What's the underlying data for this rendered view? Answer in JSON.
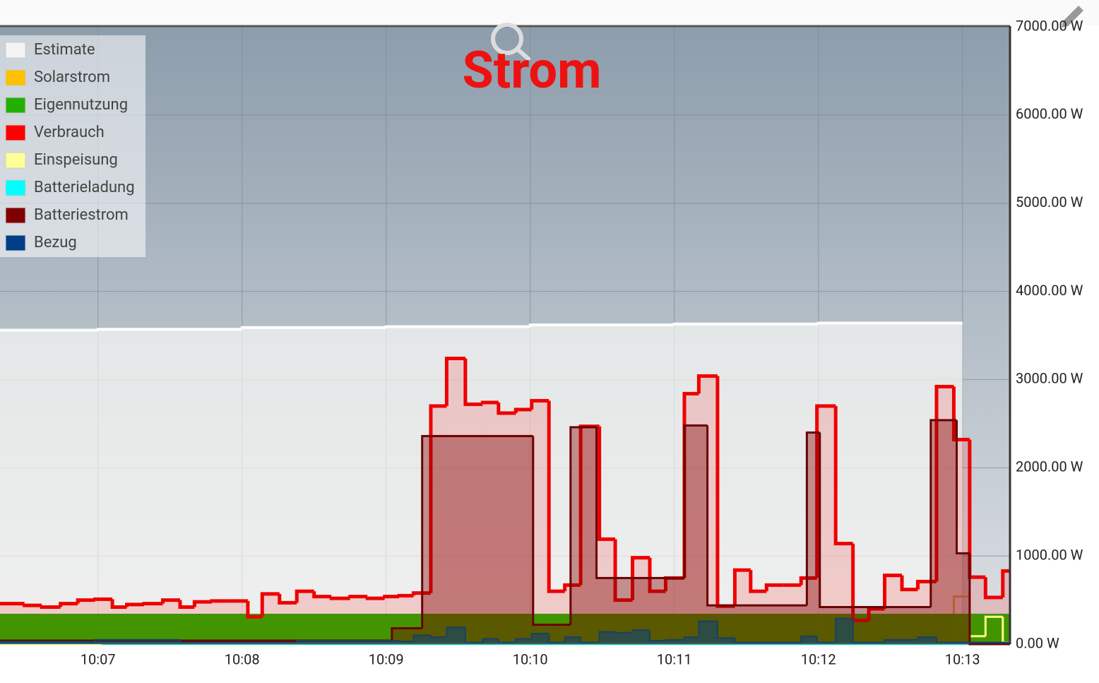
{
  "chart_data": {
    "type": "line",
    "step": true,
    "title": "Strom",
    "xlim": [
      606.32,
      613.33
    ],
    "xticks": [
      {
        "value": 607,
        "label": "10:07"
      },
      {
        "value": 608,
        "label": "10:08"
      },
      {
        "value": 609,
        "label": "10:09"
      },
      {
        "value": 610,
        "label": "10:10"
      },
      {
        "value": 611,
        "label": "10:11"
      },
      {
        "value": 612,
        "label": "10:12"
      },
      {
        "value": 613,
        "label": "10:13"
      }
    ],
    "ylim": [
      0,
      7000
    ],
    "yticks": [
      {
        "value": 0,
        "label": "0.00 W"
      },
      {
        "value": 1000,
        "label": "1000.00 W"
      },
      {
        "value": 2000,
        "label": "2000.00 W"
      },
      {
        "value": 3000,
        "label": "3000.00 W"
      },
      {
        "value": 4000,
        "label": "4000.00 W"
      },
      {
        "value": 5000,
        "label": "5000.00 W"
      },
      {
        "value": 6000,
        "label": "6000.00 W"
      },
      {
        "value": 7000,
        "label": "7000.00 W"
      }
    ],
    "grid": true,
    "legend": "top-left",
    "series": [
      {
        "name": "Estimate",
        "color": "#f4f4f2",
        "x": [
          606.32,
          607,
          608,
          609,
          610,
          611,
          612,
          613
        ],
        "values": [
          3560,
          3570,
          3590,
          3600,
          3620,
          3630,
          3640,
          null
        ]
      },
      {
        "name": "Solarstrom",
        "color": "#ffc000",
        "x": [
          606.32,
          610.36,
          610.48,
          610.59,
          611.3,
          611.42,
          612.94,
          613.05
        ],
        "values": [
          10,
          300,
          80,
          40,
          320,
          20,
          540,
          20
        ]
      },
      {
        "name": "Eigennutzung",
        "color": "#22b000",
        "x": [
          606.32
        ],
        "values": [
          345
        ]
      },
      {
        "name": "Verbrauch",
        "color": "#ff0000",
        "x": [
          606.32,
          606.49,
          606.61,
          606.74,
          606.86,
          606.98,
          607.1,
          607.2,
          607.32,
          607.45,
          607.57,
          607.67,
          607.79,
          607.91,
          608.04,
          608.14,
          608.26,
          608.38,
          608.5,
          608.62,
          608.75,
          608.87,
          608.99,
          609.09,
          609.19,
          609.31,
          609.42,
          609.55,
          609.67,
          609.78,
          609.9,
          610.01,
          610.13,
          610.24,
          610.35,
          610.48,
          610.59,
          610.71,
          610.83,
          610.94,
          611.07,
          611.17,
          611.3,
          611.42,
          611.53,
          611.64,
          611.76,
          611.88,
          611.99,
          612.12,
          612.24,
          612.35,
          612.46,
          612.58,
          612.69,
          612.82,
          612.94,
          613.05,
          613.16,
          613.28
        ],
        "values": [
          460,
          440,
          420,
          460,
          500,
          510,
          420,
          450,
          460,
          500,
          420,
          480,
          490,
          490,
          310,
          570,
          470,
          600,
          540,
          520,
          540,
          520,
          540,
          550,
          580,
          2700,
          3240,
          2720,
          2740,
          2620,
          2660,
          2760,
          600,
          670,
          2470,
          1190,
          500,
          980,
          600,
          750,
          2840,
          3040,
          430,
          840,
          600,
          670,
          670,
          750,
          2700,
          1140,
          270,
          400,
          780,
          620,
          710,
          2920,
          2320,
          760,
          530,
          830
        ]
      },
      {
        "name": "Einspeisung",
        "color": "#ffff99",
        "x": [
          606.32,
          613.05,
          613.16,
          613.28
        ],
        "values": [
          0,
          90,
          310,
          20
        ]
      },
      {
        "name": "Batterieladung",
        "color": "#00ffff",
        "x": [
          606.32,
          607.03
        ],
        "values": [
          8,
          0
        ]
      },
      {
        "name": "Batteriestrom",
        "color": "#800000",
        "x": [
          606.32,
          609.04,
          609.25,
          610.02,
          610.28,
          610.46,
          611.07,
          611.23,
          611.92,
          612.01,
          612.78,
          612.96,
          613.05
        ],
        "values": [
          40,
          180,
          2360,
          220,
          2460,
          750,
          2480,
          440,
          2400,
          420,
          2540,
          1030,
          0
        ]
      },
      {
        "name": "Bezug",
        "color": "#003f87",
        "x": [
          606.32,
          606.98,
          607.57,
          608.38,
          609.09,
          609.19,
          609.31,
          609.42,
          609.55,
          609.67,
          609.78,
          609.9,
          610.01,
          610.13,
          610.24,
          610.35,
          610.48,
          610.59,
          610.71,
          610.83,
          610.94,
          611.07,
          611.17,
          611.3,
          611.42,
          611.88,
          611.99,
          612.12,
          612.24,
          612.46,
          612.69,
          612.82
        ],
        "values": [
          30,
          50,
          20,
          40,
          30,
          100,
          80,
          190,
          20,
          60,
          20,
          60,
          120,
          20,
          80,
          20,
          140,
          130,
          160,
          40,
          50,
          80,
          260,
          70,
          20,
          90,
          20,
          290,
          20,
          50,
          80,
          20
        ]
      }
    ]
  }
}
